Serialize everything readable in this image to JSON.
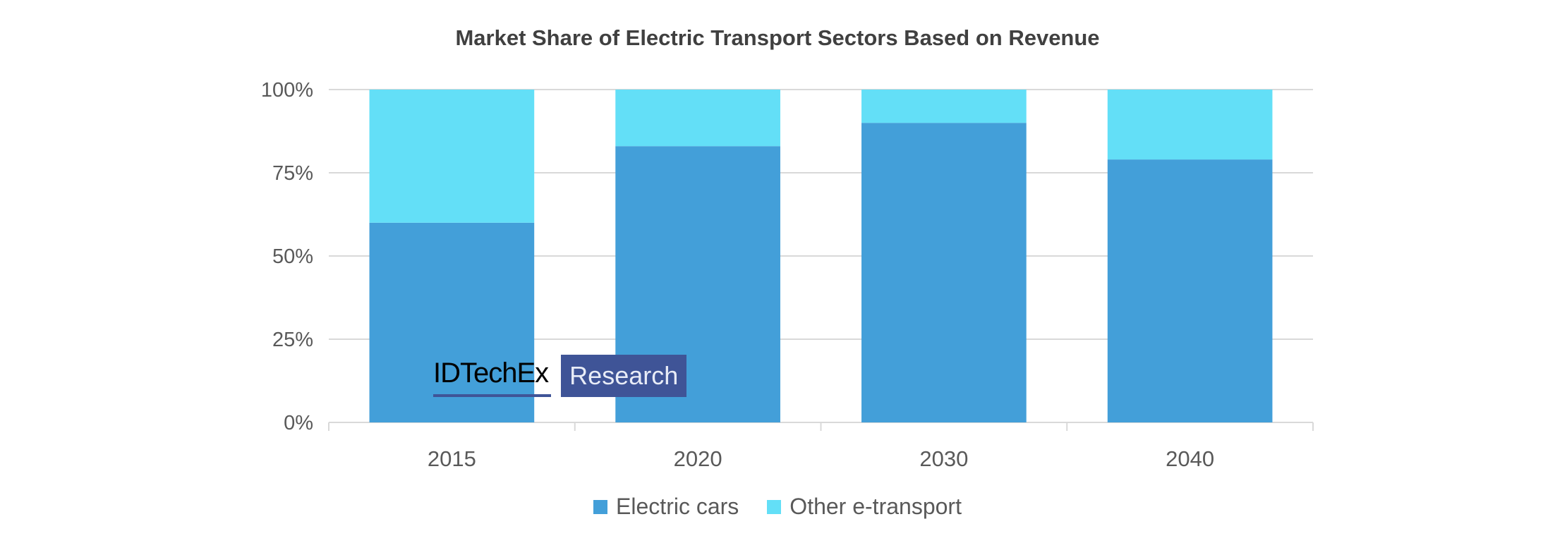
{
  "chart_data": {
    "type": "bar",
    "stacked": true,
    "title": "Market Share of Electric Transport Sectors Based on Revenue",
    "categories": [
      "2015",
      "2020",
      "2030",
      "2040"
    ],
    "series": [
      {
        "name": "Electric cars",
        "color": "#439FD9",
        "values": [
          60,
          83,
          90,
          79
        ]
      },
      {
        "name": "Other e-transport",
        "color": "#63DFF7",
        "values": [
          40,
          17,
          10,
          21
        ]
      }
    ],
    "ylim": [
      0,
      100
    ],
    "yticks": [
      0,
      25,
      50,
      75,
      100
    ],
    "ytick_labels": [
      "0%",
      "25%",
      "50%",
      "75%",
      "100%"
    ],
    "xlabel": "",
    "ylabel": "",
    "grid": true,
    "legend": "bottom"
  },
  "watermark": {
    "brand": "IDTechEx",
    "suffix": "Research"
  }
}
